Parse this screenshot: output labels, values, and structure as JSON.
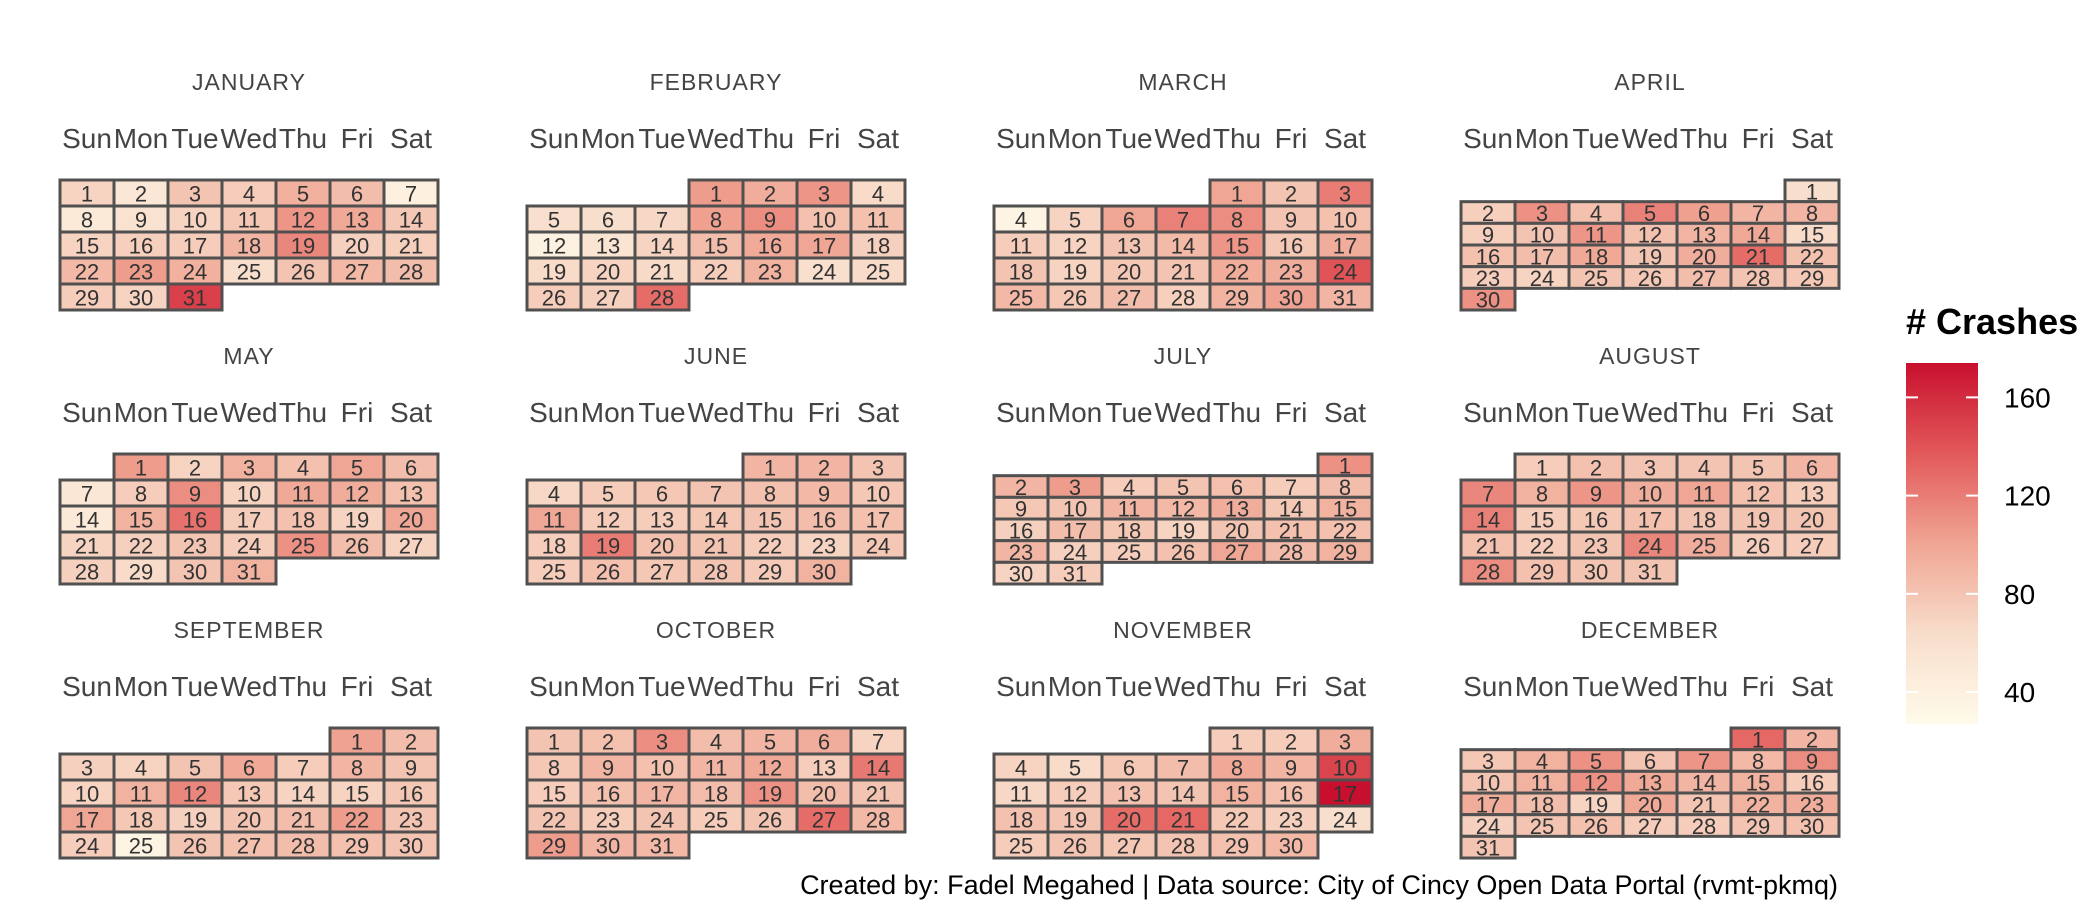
{
  "chart_data": {
    "type": "heatmap",
    "layout": "calendar",
    "weekday_labels": [
      "Sun",
      "Mon",
      "Tue",
      "Wed",
      "Thu",
      "Fri",
      "Sat"
    ],
    "legend": {
      "title": "# Crashes",
      "ticks": [
        40,
        80,
        120,
        160
      ],
      "range": [
        27,
        174
      ],
      "colors": [
        "#fffbea",
        "#f8ddcb",
        "#f0a593",
        "#e2595a",
        "#c8102e"
      ]
    },
    "caption": "Created by: Fadel Megahed | Data source: City of Cincy Open Data Portal (rvmt-pkmq)",
    "months": [
      {
        "name": "JANUARY",
        "start_dow": 0,
        "values": [
          70,
          52,
          80,
          75,
          93,
          85,
          40,
          48,
          58,
          70,
          78,
          108,
          98,
          78,
          70,
          73,
          75,
          90,
          115,
          72,
          73,
          88,
          105,
          93,
          62,
          80,
          88,
          85,
          75,
          70,
          150
        ]
      },
      {
        "name": "FEBRUARY",
        "start_dow": 3,
        "values": [
          105,
          95,
          108,
          65,
          60,
          62,
          68,
          103,
          112,
          82,
          82,
          38,
          55,
          70,
          85,
          97,
          100,
          72,
          65,
          70,
          66,
          75,
          92,
          60,
          65,
          75,
          72,
          128
        ]
      },
      {
        "name": "MARCH",
        "start_dow": 4,
        "values": [
          100,
          80,
          120,
          35,
          70,
          100,
          118,
          112,
          80,
          82,
          75,
          70,
          80,
          87,
          108,
          78,
          95,
          80,
          70,
          78,
          80,
          96,
          95,
          140,
          88,
          78,
          85,
          73,
          92,
          102,
          90
        ]
      },
      {
        "name": "APRIL",
        "start_dow": 6,
        "values": [
          62,
          73,
          110,
          82,
          118,
          103,
          90,
          90,
          73,
          80,
          108,
          82,
          90,
          98,
          65,
          82,
          85,
          98,
          80,
          95,
          128,
          82,
          75,
          70,
          80,
          78,
          85,
          80,
          78,
          110
        ]
      },
      {
        "name": "MAY",
        "start_dow": 1,
        "values": [
          105,
          70,
          92,
          82,
          100,
          85,
          52,
          75,
          112,
          70,
          98,
          95,
          82,
          48,
          92,
          125,
          75,
          82,
          70,
          100,
          70,
          72,
          80,
          75,
          110,
          85,
          70,
          72,
          65,
          80,
          92
        ]
      },
      {
        "name": "JUNE",
        "start_dow": 4,
        "values": [
          90,
          90,
          80,
          68,
          75,
          78,
          80,
          82,
          88,
          78,
          100,
          75,
          75,
          78,
          80,
          85,
          82,
          75,
          120,
          82,
          80,
          75,
          70,
          78,
          75,
          82,
          78,
          80,
          76,
          92
        ]
      },
      {
        "name": "JULY",
        "start_dow": 6,
        "values": [
          110,
          90,
          105,
          75,
          80,
          82,
          75,
          85,
          78,
          80,
          90,
          88,
          95,
          78,
          92,
          72,
          85,
          78,
          70,
          80,
          82,
          82,
          90,
          72,
          75,
          82,
          100,
          86,
          92,
          70,
          75
        ]
      },
      {
        "name": "AUGUST",
        "start_dow": 1,
        "values": [
          75,
          82,
          80,
          80,
          80,
          90,
          115,
          92,
          108,
          95,
          100,
          82,
          75,
          118,
          75,
          78,
          82,
          80,
          80,
          80,
          82,
          75,
          80,
          115,
          95,
          75,
          75,
          112,
          82,
          80,
          80
        ]
      },
      {
        "name": "SEPTEMBER",
        "start_dow": 5,
        "values": [
          102,
          85,
          72,
          70,
          80,
          98,
          75,
          90,
          80,
          70,
          92,
          115,
          78,
          70,
          70,
          78,
          100,
          78,
          72,
          80,
          85,
          105,
          80,
          75,
          35,
          80,
          82,
          85,
          82,
          80
        ]
      },
      {
        "name": "OCTOBER",
        "start_dow": 0,
        "values": [
          80,
          82,
          112,
          85,
          90,
          95,
          70,
          78,
          90,
          82,
          90,
          98,
          75,
          122,
          75,
          82,
          90,
          85,
          110,
          85,
          80,
          80,
          75,
          80,
          75,
          80,
          128,
          88,
          105,
          90,
          88
        ]
      },
      {
        "name": "NOVEMBER",
        "start_dow": 4,
        "values": [
          75,
          75,
          95,
          70,
          65,
          78,
          85,
          98,
          90,
          148,
          68,
          75,
          82,
          80,
          92,
          82,
          174,
          82,
          80,
          128,
          130,
          78,
          72,
          62,
          75,
          80,
          78,
          80,
          82,
          88
        ]
      },
      {
        "name": "DECEMBER",
        "start_dow": 5,
        "values": [
          130,
          90,
          78,
          92,
          110,
          80,
          108,
          88,
          112,
          80,
          92,
          110,
          98,
          90,
          92,
          75,
          95,
          85,
          70,
          98,
          80,
          92,
          95,
          72,
          80,
          82,
          75,
          75,
          80,
          82,
          80
        ]
      }
    ]
  }
}
